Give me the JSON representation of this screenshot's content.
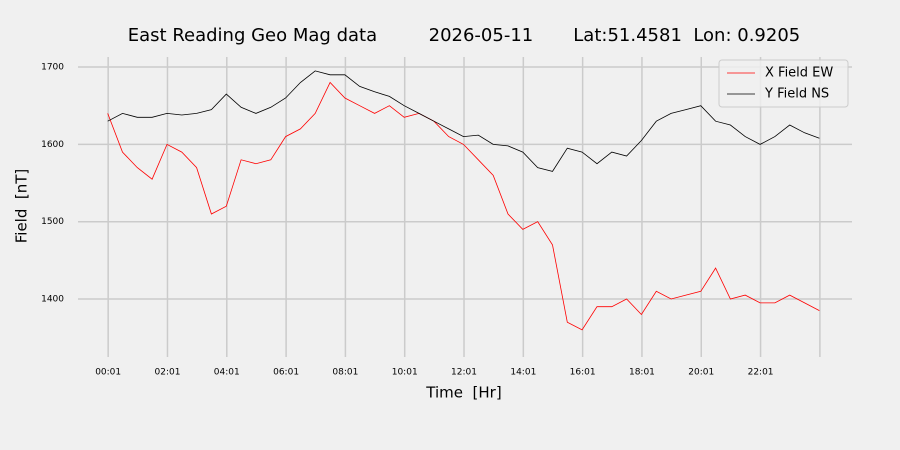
{
  "chart_data": {
    "type": "line",
    "title": "East Reading Geo Mag data         2026-05-11       Lat:51.4581  Lon: 0.9205",
    "x_label": "Time  [Hr]",
    "y_label": "Field  [nT]",
    "x": [
      0,
      0.5,
      1,
      1.5,
      2,
      2.5,
      3,
      3.5,
      4,
      4.5,
      5,
      5.5,
      6,
      6.5,
      7,
      7.5,
      8,
      8.5,
      9,
      9.5,
      10,
      10.5,
      11,
      11.5,
      12,
      12.5,
      13,
      13.5,
      14,
      14.5,
      15,
      15.5,
      16,
      16.5,
      17,
      17.5,
      18,
      18.5,
      19,
      19.5,
      20,
      20.5,
      21,
      21.5,
      22,
      22.5,
      23,
      23.5,
      24
    ],
    "series": [
      {
        "name": "X Field EW",
        "color": "#ff0000",
        "values": [
          1640,
          1590,
          1570,
          1555,
          1600,
          1590,
          1570,
          1510,
          1520,
          1580,
          1575,
          1580,
          1610,
          1620,
          1640,
          1680,
          1660,
          1650,
          1640,
          1650,
          1635,
          1640,
          1630,
          1610,
          1600,
          1580,
          1560,
          1510,
          1490,
          1500,
          1470,
          1370,
          1360,
          1390,
          1390,
          1400,
          1380,
          1410,
          1400,
          1405,
          1410,
          1440,
          1400,
          1405,
          1395,
          1395,
          1405,
          1395,
          1385
        ]
      },
      {
        "name": "Y Field NS",
        "color": "#000000",
        "values": [
          1630,
          1640,
          1635,
          1635,
          1640,
          1638,
          1640,
          1645,
          1665,
          1648,
          1640,
          1648,
          1660,
          1680,
          1695,
          1690,
          1690,
          1675,
          1668,
          1662,
          1650,
          1640,
          1630,
          1620,
          1610,
          1612,
          1600,
          1598,
          1590,
          1570,
          1565,
          1595,
          1590,
          1575,
          1590,
          1585,
          1605,
          1630,
          1640,
          1645,
          1650,
          1630,
          1625,
          1610,
          1600,
          1610,
          1625,
          1615,
          1608
        ]
      }
    ],
    "xlim": [
      -1,
      25.1
    ],
    "xticks": [
      {
        "value": 0.017,
        "label": "00:01"
      },
      {
        "value": 2.017,
        "label": "02:01"
      },
      {
        "value": 4.017,
        "label": "04:01"
      },
      {
        "value": 6.017,
        "label": "06:01"
      },
      {
        "value": 8.017,
        "label": "08:01"
      },
      {
        "value": 10.017,
        "label": "10:01"
      },
      {
        "value": 12.017,
        "label": "12:01"
      },
      {
        "value": 14.017,
        "label": "14:01"
      },
      {
        "value": 16.017,
        "label": "16:01"
      },
      {
        "value": 18.017,
        "label": "18:01"
      },
      {
        "value": 20.017,
        "label": "20:01"
      },
      {
        "value": 22.017,
        "label": "22:01"
      },
      {
        "value": 24.017,
        "label": null
      }
    ],
    "ylim": [
      1325,
      1713
    ],
    "yticks": [
      1400,
      1500,
      1600,
      1700
    ],
    "grid": true,
    "legend": "upper right"
  }
}
